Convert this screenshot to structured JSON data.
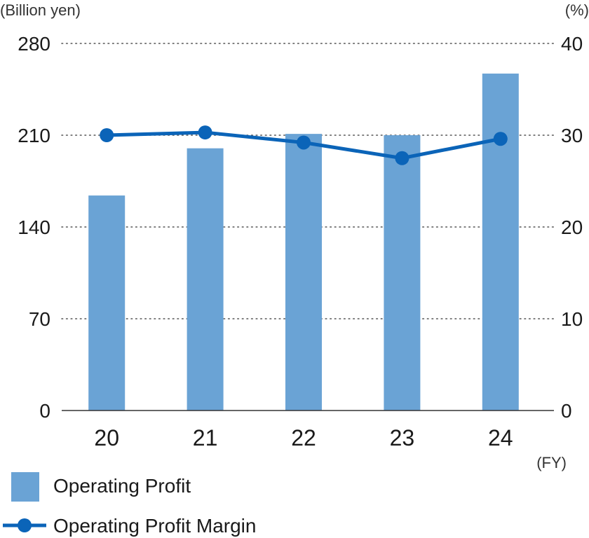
{
  "chart_data": {
    "type": "bar",
    "categories": [
      "20",
      "21",
      "22",
      "23",
      "24"
    ],
    "x_unit": "(FY)",
    "left_axis": {
      "unit": "(Billion yen)",
      "ylim": [
        0,
        280
      ],
      "ticks": [
        "0",
        "70",
        "140",
        "210",
        "280"
      ]
    },
    "right_axis": {
      "unit": "(%)",
      "ylim": [
        0,
        40
      ],
      "ticks": [
        "0",
        "10",
        "20",
        "30",
        "40"
      ]
    },
    "grid": "dotted horizontal",
    "legend_placement": "bottom-left",
    "series": [
      {
        "name": "Operating Profit",
        "type": "bar",
        "axis": "left",
        "color": "#6aa3d5",
        "values": [
          164,
          200,
          211,
          210,
          257
        ]
      },
      {
        "name": "Operating Profit Margin",
        "type": "line",
        "axis": "right",
        "color": "#0b64b8",
        "values": [
          30.0,
          30.3,
          29.2,
          27.5,
          29.6
        ]
      }
    ]
  }
}
